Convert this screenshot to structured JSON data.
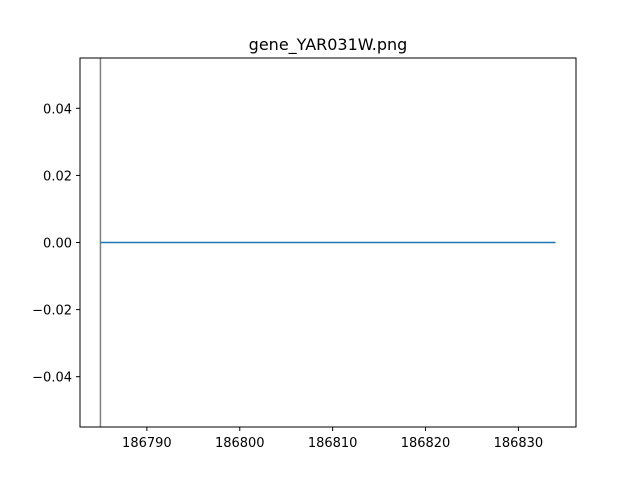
{
  "chart_data": {
    "type": "line",
    "title": "gene_YAR031W.png",
    "xlabel": "",
    "ylabel": "",
    "xlim": [
      186782.8,
      186836.2
    ],
    "ylim": [
      -0.055,
      0.055
    ],
    "x_ticks": [
      186790,
      186800,
      186810,
      186820,
      186830
    ],
    "y_ticks": [
      0.04,
      0.02,
      0.0,
      -0.02,
      -0.04
    ],
    "x_tick_labels": [
      "186790",
      "186800",
      "186810",
      "186820",
      "186830"
    ],
    "y_tick_labels": [
      "0.04",
      "0.02",
      "0.00",
      "−0.02",
      "−0.04"
    ],
    "series": [
      {
        "x": [
          186785,
          186834
        ],
        "y": [
          0,
          0
        ],
        "color": "#1f77b4"
      }
    ],
    "vlines": [
      {
        "x": 186785,
        "color": "#808080"
      }
    ],
    "grid": false
  }
}
